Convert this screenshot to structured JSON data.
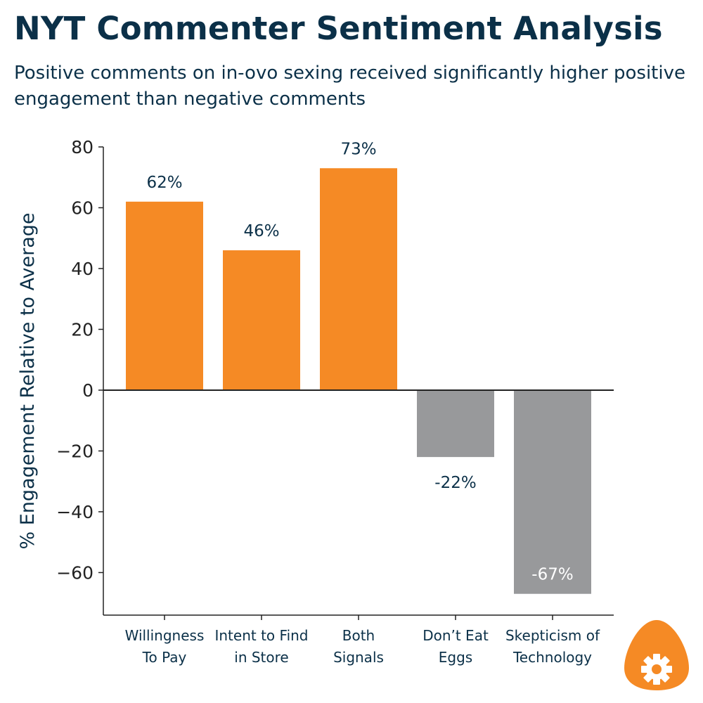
{
  "header": {
    "title": "NYT Commenter Sentiment Analysis",
    "subtitle": "Positive comments on in-ovo sexing received significantly higher positive engagement than negative comments"
  },
  "colors": {
    "positive": "#f58a25",
    "negative": "#98999b",
    "text": "#0b3048",
    "axis": "#222222"
  },
  "chart_data": {
    "type": "bar",
    "title": "NYT Commenter Sentiment Analysis",
    "subtitle": "Positive comments on in-ovo sexing received significantly higher positive engagement than negative comments",
    "xlabel": "",
    "ylabel": "% Engagement Relative to Average",
    "ylim": [
      -74,
      80
    ],
    "yticks": [
      80,
      60,
      40,
      20,
      0,
      -20,
      -40,
      -60
    ],
    "ytick_labels": [
      "80",
      "60",
      "40",
      "20",
      "0",
      "−20",
      "−40",
      "−60"
    ],
    "categories": [
      [
        "Willingness",
        "To Pay"
      ],
      [
        "Intent to Find",
        "in Store"
      ],
      [
        "Both",
        "Signals"
      ],
      [
        "Don’t Eat",
        "Eggs"
      ],
      [
        "Skepticism of",
        "Technology"
      ]
    ],
    "values": [
      62,
      46,
      73,
      -22,
      -67
    ],
    "data_labels": [
      "62%",
      "46%",
      "73%",
      "-22%",
      "-67%"
    ],
    "grid": false,
    "legend": "none"
  },
  "logo": {
    "name": "egg-gear-logo"
  }
}
